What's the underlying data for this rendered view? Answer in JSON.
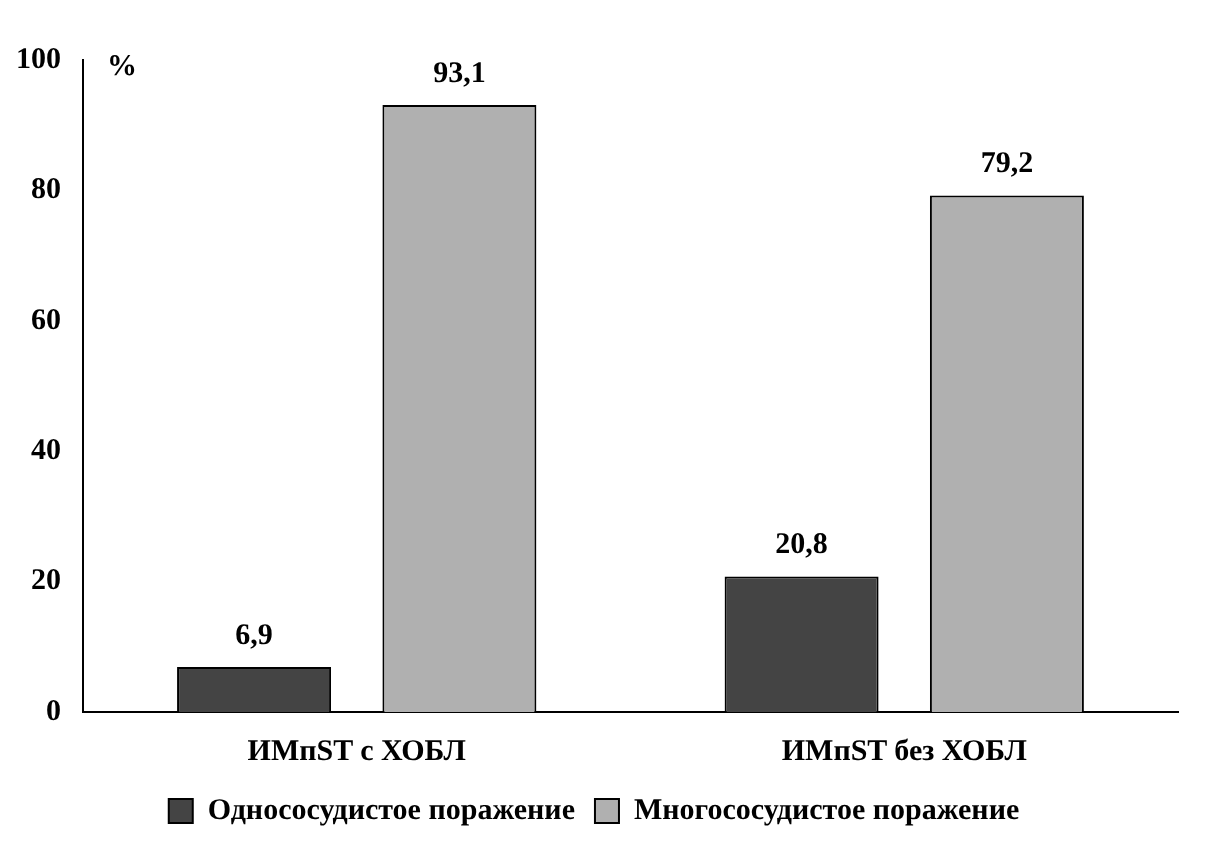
{
  "chart_data": {
    "type": "bar",
    "ylabel": "%",
    "categories": [
      "ИМпST с ХОБЛ",
      "ИМпST без ХОБЛ"
    ],
    "series": [
      {
        "name": "Однососудистое поражение",
        "color": "#444444",
        "values": [
          6.9,
          20.8
        ],
        "value_labels": [
          "6,9",
          "20,8"
        ]
      },
      {
        "name": "Многососудистое поражение",
        "color": "#b0b0b0",
        "values": [
          93.1,
          79.2
        ],
        "value_labels": [
          "93,1",
          "79,2"
        ]
      }
    ],
    "ylim": [
      0,
      100
    ],
    "yticks": [
      0,
      20,
      40,
      60,
      80,
      100
    ],
    "grid": false,
    "legend": "bottom"
  }
}
